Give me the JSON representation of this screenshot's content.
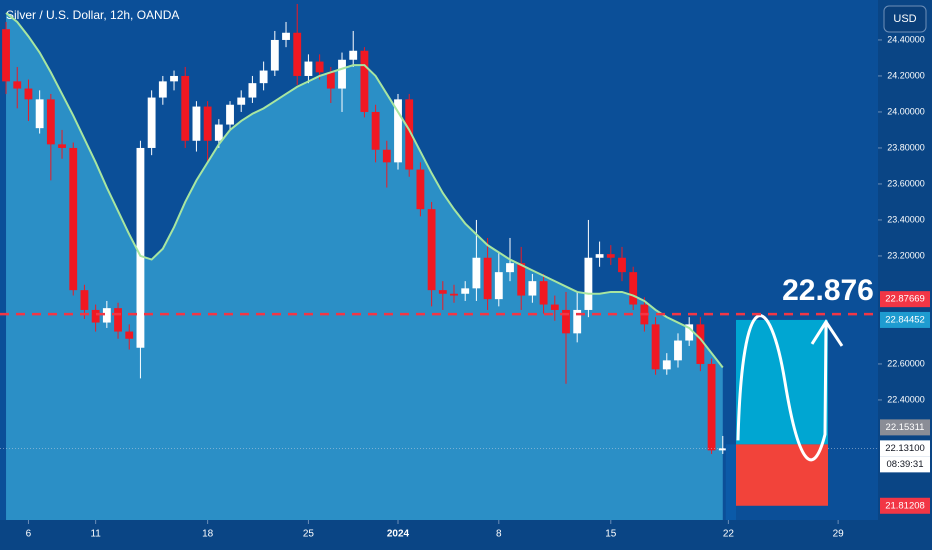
{
  "chart_data": {
    "type": "candlestick",
    "title": "Silver / U.S. Dollar, 12h, OANDA",
    "currency": "USD",
    "up_color": "#ffffff",
    "down_color": "#f01822",
    "open": [
      24.46,
      24.17,
      24.13,
      23.91,
      24.07,
      23.82,
      23.8,
      23.01,
      22.9,
      22.83,
      22.91,
      22.78,
      22.69,
      23.8,
      24.08,
      24.17,
      24.2,
      23.84,
      24.03,
      23.84,
      23.93,
      24.04,
      24.08,
      24.16,
      24.23,
      24.4,
      24.44,
      24.2,
      24.28,
      24.22,
      24.13,
      24.29,
      24.34,
      24.0,
      23.79,
      23.72,
      24.07,
      23.68,
      23.46,
      23.01,
      22.99,
      22.99,
      23.02,
      23.19,
      22.96,
      23.11,
      23.16,
      22.98,
      23.06,
      22.93,
      22.9,
      22.77,
      22.9,
      23.19,
      23.21,
      23.19,
      23.11,
      22.93,
      22.82,
      22.57,
      22.62,
      22.73,
      22.82,
      22.6,
      22.12
    ],
    "high": [
      24.5,
      24.25,
      24.18,
      24.12,
      24.1,
      23.9,
      23.83,
      23.04,
      22.93,
      22.95,
      22.94,
      22.82,
      23.84,
      24.12,
      24.2,
      24.23,
      24.25,
      24.06,
      24.06,
      23.96,
      24.06,
      24.12,
      24.2,
      24.28,
      24.45,
      24.5,
      24.6,
      24.32,
      24.32,
      24.25,
      24.33,
      24.45,
      24.36,
      24.04,
      23.84,
      24.1,
      24.1,
      23.72,
      23.5,
      23.06,
      23.04,
      23.06,
      23.4,
      23.3,
      23.22,
      23.3,
      23.25,
      23.1,
      23.1,
      22.98,
      23.0,
      23.0,
      23.4,
      23.28,
      23.26,
      23.25,
      23.14,
      22.97,
      22.86,
      22.66,
      22.77,
      22.86,
      22.86,
      22.63,
      22.2
    ],
    "low": [
      24.1,
      24.02,
      23.95,
      23.88,
      23.62,
      23.74,
      22.98,
      22.85,
      22.78,
      22.8,
      22.74,
      22.68,
      22.52,
      23.76,
      24.04,
      24.12,
      23.8,
      23.78,
      23.72,
      23.8,
      23.9,
      24.0,
      24.05,
      24.12,
      24.2,
      24.36,
      24.15,
      24.16,
      24.18,
      24.05,
      24.0,
      24.25,
      23.97,
      23.72,
      23.58,
      23.68,
      23.64,
      23.42,
      22.92,
      22.9,
      22.94,
      22.95,
      22.95,
      22.9,
      22.92,
      23.06,
      22.9,
      22.94,
      22.88,
      22.84,
      22.49,
      22.72,
      22.86,
      23.14,
      23.15,
      23.06,
      22.9,
      22.78,
      22.54,
      22.54,
      22.58,
      22.7,
      22.56,
      22.1,
      22.1
    ],
    "close": [
      24.17,
      24.13,
      24.07,
      24.07,
      23.82,
      23.8,
      23.01,
      22.9,
      22.83,
      22.91,
      22.78,
      22.74,
      23.8,
      24.08,
      24.17,
      24.2,
      23.84,
      24.03,
      23.84,
      23.93,
      24.04,
      24.08,
      24.16,
      24.23,
      24.4,
      24.44,
      24.2,
      24.28,
      24.22,
      24.13,
      24.29,
      24.34,
      24.0,
      23.79,
      23.72,
      24.07,
      23.68,
      23.46,
      23.01,
      22.99,
      22.98,
      23.02,
      23.19,
      22.96,
      23.11,
      23.16,
      22.98,
      23.06,
      22.93,
      22.9,
      22.77,
      22.9,
      23.19,
      23.21,
      23.19,
      23.11,
      22.93,
      22.82,
      22.57,
      22.62,
      22.73,
      22.82,
      22.6,
      22.12,
      22.131
    ],
    "ma": {
      "color": "#a8e6a0",
      "fill": "#2b8fc6",
      "values": [
        24.55,
        24.5,
        24.42,
        24.33,
        24.22,
        24.1,
        23.98,
        23.85,
        23.72,
        23.58,
        23.45,
        23.32,
        23.2,
        23.18,
        23.24,
        23.36,
        23.5,
        23.62,
        23.72,
        23.82,
        23.9,
        23.95,
        23.99,
        24.02,
        24.06,
        24.1,
        24.14,
        24.17,
        24.2,
        24.22,
        24.24,
        24.26,
        24.26,
        24.2,
        24.1,
        24.0,
        23.9,
        23.78,
        23.66,
        23.55,
        23.46,
        23.38,
        23.32,
        23.26,
        23.22,
        23.18,
        23.15,
        23.12,
        23.09,
        23.06,
        23.03,
        23.0,
        22.99,
        22.99,
        23.0,
        23.0,
        22.98,
        22.95,
        22.9,
        22.86,
        22.83,
        22.8,
        22.74,
        22.66,
        22.58
      ]
    },
    "ylim": [
      21.733,
      24.622
    ],
    "yticks": [
      {
        "value": 24.4,
        "label": "24.40000"
      },
      {
        "value": 24.2,
        "label": "24.20000"
      },
      {
        "value": 24.0,
        "label": "24.00000"
      },
      {
        "value": 23.8,
        "label": "23.80000"
      },
      {
        "value": 23.6,
        "label": "23.60000"
      },
      {
        "value": 23.4,
        "label": "23.40000"
      },
      {
        "value": 23.2,
        "label": "23.20000"
      },
      {
        "value": 22.6,
        "label": "22.60000"
      },
      {
        "value": 22.4,
        "label": "22.40000"
      }
    ],
    "xlim": [
      -0.54,
      77.86
    ],
    "xticks": [
      {
        "value": 2,
        "label": "6"
      },
      {
        "value": 8,
        "label": "11"
      },
      {
        "value": 18,
        "label": "18"
      },
      {
        "value": 27,
        "label": "25"
      },
      {
        "value": 35,
        "label": "2024"
      },
      {
        "value": 44,
        "label": "8"
      },
      {
        "value": 54,
        "label": "15"
      },
      {
        "value": 64.5,
        "label": "22"
      },
      {
        "value": 74.3,
        "label": "29"
      }
    ],
    "price_tags": [
      {
        "value": 22.87669,
        "label": "22.87669",
        "color": "#f23645"
      },
      {
        "value": 22.84452,
        "label": "22.84452",
        "color": "#1e9bd0"
      },
      {
        "value": 22.15311,
        "label": "22.15311",
        "color": "#8a8d96"
      },
      {
        "value": 22.131,
        "label": "22.13100",
        "color": "#ffffff"
      },
      {
        "value": 21.81208,
        "label": "21.81208",
        "color": "#f23645"
      }
    ],
    "countdown": "08:39:31",
    "annotation": "22.876",
    "position": {
      "target": 22.84452,
      "entry": 22.15311,
      "stop": 21.81208,
      "target_color": "#00a6d2",
      "stop_color": "#f2433a"
    }
  }
}
